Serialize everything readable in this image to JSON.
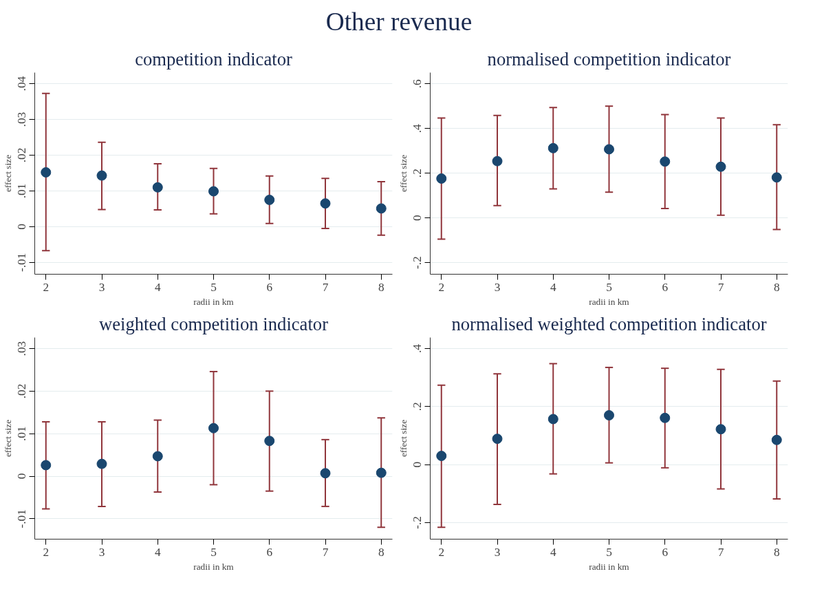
{
  "chart_data": [
    {
      "type": "scatter",
      "title": "competition indicator",
      "xlabel": "radii in km",
      "ylabel": "effect size",
      "annotations": [
        "Other revenue"
      ],
      "x": [
        2,
        3,
        4,
        5,
        6,
        7,
        8
      ],
      "series": [
        {
          "color": "#1a476f",
          "values": [
            0.0152,
            0.0143,
            0.011,
            0.0099,
            0.0075,
            0.0065,
            0.0051
          ],
          "errors": [
            [
              -0.0067,
              0.0373
            ],
            [
              0.0048,
              0.0236
            ],
            [
              0.0047,
              0.0176
            ],
            [
              0.0036,
              0.0163
            ],
            [
              0.0009,
              0.0142
            ],
            [
              -0.0005,
              0.0135
            ],
            [
              -0.0024,
              0.0126
            ]
          ]
        }
      ],
      "xlim": [
        1.8,
        8.2
      ],
      "xticks": [
        2,
        3,
        4,
        5,
        6,
        7,
        8
      ],
      "ylim": [
        -0.0133,
        0.0431
      ],
      "yticks": [
        {
          "value": -0.01,
          "label": "-.01"
        },
        {
          "value": 0,
          "label": "0"
        },
        {
          "value": 0.01,
          "label": ".01"
        },
        {
          "value": 0.02,
          "label": ".02"
        },
        {
          "value": 0.03,
          "label": ".03"
        },
        {
          "value": 0.04,
          "label": ".04"
        }
      ],
      "grid": "y",
      "marker": "circle"
    },
    {
      "type": "scatter",
      "title": "normalised competition indicator",
      "xlabel": "radii in km",
      "ylabel": "effect size",
      "x": [
        2,
        3,
        4,
        5,
        6,
        7,
        8
      ],
      "series": [
        {
          "color": "#1a476f",
          "values": [
            0.176,
            0.254,
            0.312,
            0.307,
            0.252,
            0.229,
            0.181
          ],
          "errors": [
            [
              -0.095,
              0.447
            ],
            [
              0.055,
              0.458
            ],
            [
              0.13,
              0.494
            ],
            [
              0.115,
              0.5
            ],
            [
              0.042,
              0.462
            ],
            [
              0.012,
              0.447
            ],
            [
              -0.052,
              0.417
            ]
          ]
        }
      ],
      "xlim": [
        1.8,
        8.2
      ],
      "xticks": [
        2,
        3,
        4,
        5,
        6,
        7,
        8
      ],
      "ylim": [
        -0.252,
        0.65
      ],
      "yticks": [
        {
          "value": -0.2,
          "label": "-.2"
        },
        {
          "value": 0,
          "label": "0"
        },
        {
          "value": 0.2,
          "label": ".2"
        },
        {
          "value": 0.4,
          "label": ".4"
        },
        {
          "value": 0.6,
          "label": ".6"
        }
      ],
      "grid": "y",
      "marker": "circle"
    },
    {
      "type": "scatter",
      "title": "weighted competition indicator",
      "xlabel": "radii in km",
      "ylabel": "effect size",
      "x": [
        2,
        3,
        4,
        5,
        6,
        7,
        8
      ],
      "series": [
        {
          "color": "#1a476f",
          "values": [
            0.0026,
            0.0029,
            0.0047,
            0.0113,
            0.0083,
            0.0007,
            0.0008
          ],
          "errors": [
            [
              -0.0077,
              0.0128
            ],
            [
              -0.0071,
              0.0128
            ],
            [
              -0.0037,
              0.0132
            ],
            [
              -0.002,
              0.0246
            ],
            [
              -0.0035,
              0.02
            ],
            [
              -0.0071,
              0.0086
            ],
            [
              -0.012,
              0.0137
            ]
          ]
        }
      ],
      "xlim": [
        1.8,
        8.2
      ],
      "xticks": [
        2,
        3,
        4,
        5,
        6,
        7,
        8
      ],
      "ylim": [
        -0.0148,
        0.0326
      ],
      "yticks": [
        {
          "value": -0.01,
          "label": "-.01"
        },
        {
          "value": 0,
          "label": "0"
        },
        {
          "value": 0.01,
          "label": ".01"
        },
        {
          "value": 0.02,
          "label": ".02"
        },
        {
          "value": 0.03,
          "label": ".03"
        }
      ],
      "grid": "y",
      "marker": "circle"
    },
    {
      "type": "scatter",
      "title": "normalised weighted competition indicator",
      "xlabel": "radii in km",
      "ylabel": "effect size",
      "x": [
        2,
        3,
        4,
        5,
        6,
        7,
        8
      ],
      "series": [
        {
          "color": "#1a476f",
          "values": [
            0.03,
            0.089,
            0.157,
            0.17,
            0.161,
            0.122,
            0.085
          ],
          "errors": [
            [
              -0.216,
              0.274
            ],
            [
              -0.137,
              0.313
            ],
            [
              -0.032,
              0.348
            ],
            [
              0.006,
              0.335
            ],
            [
              -0.011,
              0.332
            ],
            [
              -0.084,
              0.328
            ],
            [
              -0.118,
              0.288
            ]
          ]
        }
      ],
      "xlim": [
        1.8,
        8.2
      ],
      "xticks": [
        2,
        3,
        4,
        5,
        6,
        7,
        8
      ],
      "ylim": [
        -0.257,
        0.438
      ],
      "yticks": [
        {
          "value": -0.2,
          "label": "-.2"
        },
        {
          "value": 0,
          "label": "0"
        },
        {
          "value": 0.2,
          "label": ".2"
        },
        {
          "value": 0.4,
          "label": ".4"
        }
      ],
      "grid": "y",
      "marker": "circle"
    }
  ]
}
